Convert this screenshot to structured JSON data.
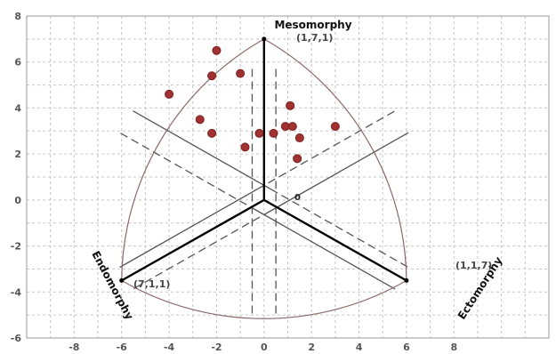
{
  "colors": {
    "grid": "#c6c6c6",
    "frame": "#9a9a9a",
    "boundary": "#8c6a6a",
    "axis_line": "#000000",
    "dashed_line": "#555555",
    "point_fill": "#a23232",
    "point_stroke": "#7a1e1e"
  },
  "chart_data": {
    "type": "scatter",
    "xlim": [
      -10,
      12
    ],
    "ylim": [
      -6,
      8
    ],
    "x_ticks": [
      "-8",
      "-6",
      "-4",
      "-2",
      "0",
      "2",
      "4",
      "6",
      "8"
    ],
    "y_ticks": [
      "-6",
      "-4",
      "-2",
      "0",
      "2",
      "4",
      "6",
      "8"
    ],
    "grid": true,
    "vertices": [
      {
        "name": "Mesomorphy",
        "coord": "(1,7,1)",
        "x": 0,
        "y": 7
      },
      {
        "name": "Endomorphy",
        "coord": "(7,1,1)",
        "x": -6,
        "y": -3.5
      },
      {
        "name": "Ectomorphy",
        "coord": "(1,1,7)",
        "x": 6,
        "y": -3.5
      }
    ],
    "origin_label": "0",
    "points": [
      {
        "x": -2,
        "y": 6.5
      },
      {
        "x": -4,
        "y": 4.6
      },
      {
        "x": -2.2,
        "y": 5.4
      },
      {
        "x": -1,
        "y": 5.5
      },
      {
        "x": -2.7,
        "y": 3.5
      },
      {
        "x": -2.2,
        "y": 2.9
      },
      {
        "x": -0.8,
        "y": 2.3
      },
      {
        "x": -0.2,
        "y": 2.9
      },
      {
        "x": 0.4,
        "y": 2.9
      },
      {
        "x": 0.9,
        "y": 3.2
      },
      {
        "x": 1.1,
        "y": 4.1
      },
      {
        "x": 1.2,
        "y": 3.2
      },
      {
        "x": 1.5,
        "y": 2.7
      },
      {
        "x": 1.4,
        "y": 1.8
      },
      {
        "x": 3,
        "y": 3.2
      }
    ]
  }
}
